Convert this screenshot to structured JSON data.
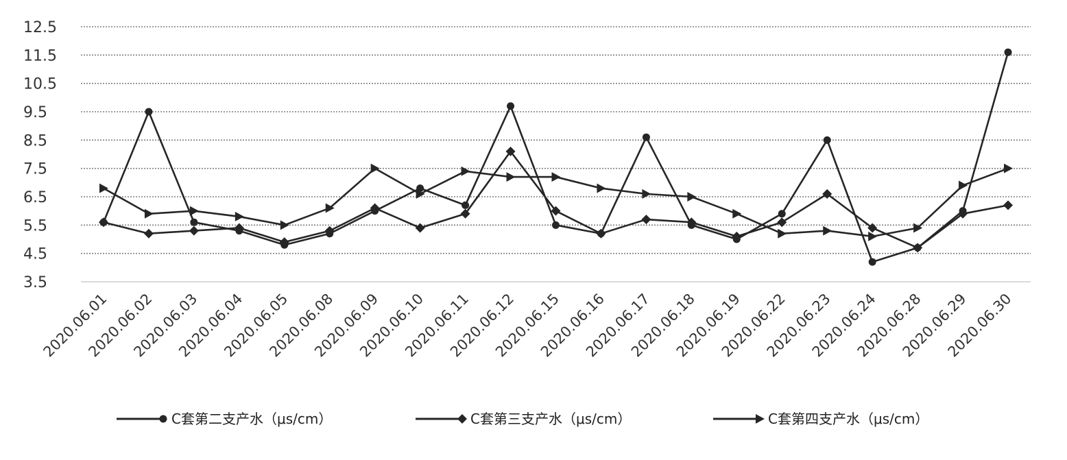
{
  "chart_data": {
    "type": "line",
    "title": "",
    "xlabel": "",
    "ylabel": "",
    "ylim": [
      3.5,
      12.5
    ],
    "yticks": [
      "12.5",
      "11.5",
      "10.5",
      "9.5",
      "8.5",
      "7.5",
      "6.5",
      "5.5",
      "4.5",
      "3.5"
    ],
    "grid": "horizontal dotted",
    "legend_position": "bottom",
    "categories": [
      "2020.06.01",
      "2020.06.02",
      "2020.06.03",
      "2020.06.04",
      "2020.06.05",
      "2020.06.08",
      "2020.06.09",
      "2020.06.10",
      "2020.06.11",
      "2020.06.12",
      "2020.06.15",
      "2020.06.16",
      "2020.06.17",
      "2020.06.18",
      "2020.06.19",
      "2020.06.22",
      "2020.06.23",
      "2020.06.24",
      "2020.06.28",
      "2020.06.29",
      "2020.06.30"
    ],
    "series": [
      {
        "name": "C套第二支产水（μs/cm）",
        "marker": "circle",
        "values": [
          5.6,
          9.5,
          5.6,
          5.3,
          4.8,
          5.2,
          6.0,
          6.8,
          6.2,
          9.7,
          5.5,
          5.2,
          8.6,
          5.5,
          5.0,
          5.9,
          8.5,
          4.2,
          4.7,
          6.0,
          11.6
        ]
      },
      {
        "name": "C套第三支产水（μs/cm）",
        "marker": "diamond",
        "values": [
          5.6,
          5.2,
          5.3,
          5.4,
          4.9,
          5.3,
          6.1,
          5.4,
          5.9,
          8.1,
          6.0,
          5.2,
          5.7,
          5.6,
          5.1,
          5.6,
          6.6,
          5.4,
          4.7,
          5.9,
          6.2
        ]
      },
      {
        "name": "C套第四支产水（μs/cm）",
        "marker": "triangle",
        "values": [
          6.8,
          5.9,
          6.0,
          5.8,
          5.5,
          6.1,
          7.5,
          6.6,
          7.4,
          7.2,
          7.2,
          6.8,
          6.6,
          6.5,
          5.9,
          5.2,
          5.3,
          5.1,
          5.4,
          6.9,
          7.5
        ]
      }
    ],
    "colors": {
      "line": "#262626",
      "grid": "#7f7f7f",
      "axis": "#d9d9d9"
    }
  }
}
